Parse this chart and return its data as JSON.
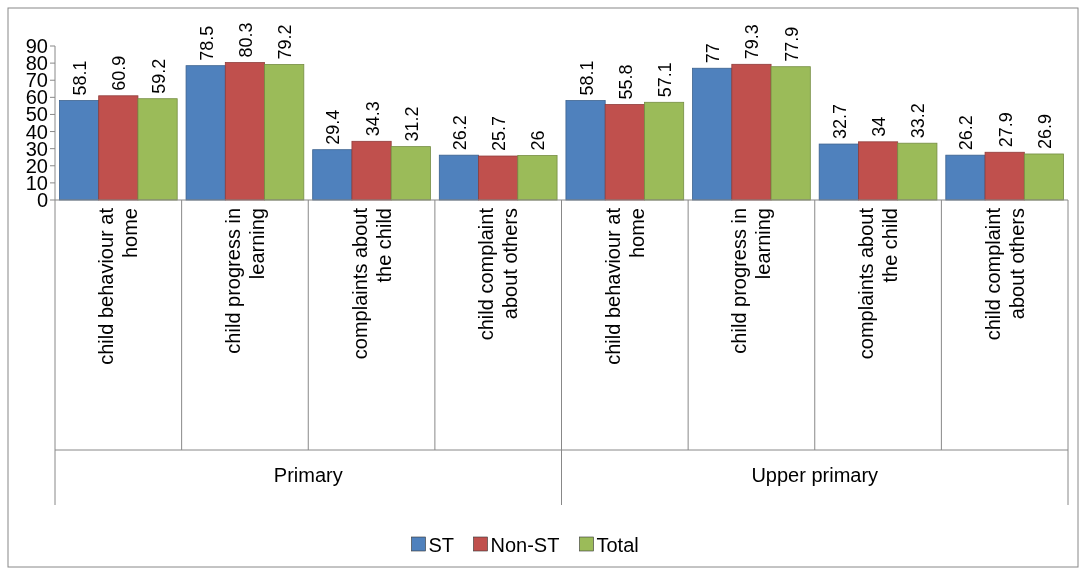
{
  "chart_data": {
    "type": "bar",
    "categories": [
      "child behaviour at home",
      "child progress in learning",
      "complaints about the child",
      "child complaint about others",
      "child behaviour at home",
      "child progress in learning",
      "complaints about the child",
      "child complaint about others"
    ],
    "series": [
      {
        "name": "ST",
        "color": "#4f81bd",
        "values": [
          58.1,
          78.5,
          29.4,
          26.2,
          58.1,
          77,
          32.7,
          26.2
        ]
      },
      {
        "name": "Non-ST",
        "color": "#c0504d",
        "values": [
          60.9,
          80.3,
          34.3,
          25.7,
          55.8,
          79.3,
          34,
          27.9
        ]
      },
      {
        "name": "Total",
        "color": "#9bbb59",
        "values": [
          59.2,
          79.2,
          31.2,
          26,
          57.1,
          77.9,
          33.2,
          26.9
        ]
      }
    ],
    "annotations": [
      "Primary",
      "Upper primary"
    ],
    "ylim": [
      0,
      90
    ],
    "yticks": [
      0,
      10,
      20,
      30,
      40,
      50,
      60,
      70,
      80,
      90
    ],
    "data_labels": true,
    "legend": "bottom",
    "grid": false
  }
}
